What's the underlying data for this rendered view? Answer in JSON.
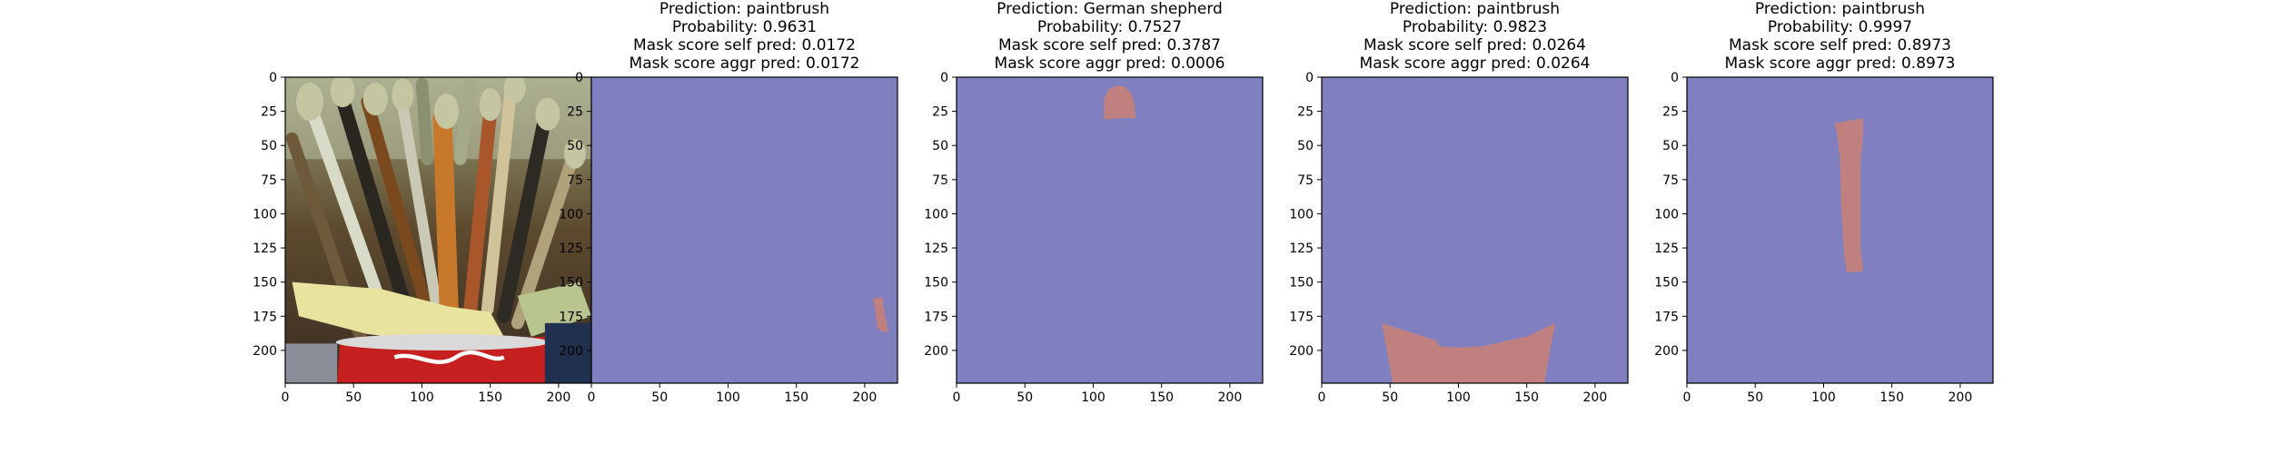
{
  "colors": {
    "mask_background": "#8080c0",
    "mask_region": "#c08080",
    "axes_frame": "#000000",
    "figure_background": "#ffffff"
  },
  "chart_data": [
    {
      "type": "image",
      "title_lines": [],
      "content": "photo",
      "image_extent": [
        0,
        224
      ],
      "xticks": [
        0,
        50,
        100,
        150,
        200
      ],
      "yticks": [
        0,
        25,
        50,
        75,
        100,
        125,
        150,
        175,
        200
      ],
      "grid": false
    },
    {
      "type": "heatmap",
      "title_lines": [
        "Prediction: paintbrush",
        "Probability: 0.9631",
        "Mask score self pred: 0.0172",
        "Mask score aggr pred: 0.0172"
      ],
      "image_extent": [
        0,
        224
      ],
      "xticks": [
        0,
        50,
        100,
        150,
        200
      ],
      "yticks": [
        0,
        25,
        50,
        75,
        100,
        125,
        150,
        175,
        200
      ],
      "grid": false,
      "mask_polygon": [
        [
          206,
          162
        ],
        [
          213,
          161
        ],
        [
          214,
          170
        ],
        [
          216,
          179
        ],
        [
          217,
          187
        ],
        [
          212,
          186
        ],
        [
          209,
          183
        ],
        [
          208,
          172
        ]
      ]
    },
    {
      "type": "heatmap",
      "title_lines": [
        "Prediction: German shepherd",
        "Probability: 0.7527",
        "Mask score self pred: 0.3787",
        "Mask score aggr pred: 0.0006"
      ],
      "image_extent": [
        0,
        224
      ],
      "xticks": [
        0,
        50,
        100,
        150,
        200
      ],
      "yticks": [
        0,
        25,
        50,
        75,
        100,
        125,
        150,
        175,
        200
      ],
      "grid": false,
      "mask_polygon": [
        [
          108,
          31
        ],
        [
          108,
          16
        ],
        [
          111,
          9
        ],
        [
          117,
          6
        ],
        [
          123,
          7
        ],
        [
          128,
          12
        ],
        [
          130,
          18
        ],
        [
          131,
          30
        ],
        [
          120,
          30
        ]
      ]
    },
    {
      "type": "heatmap",
      "title_lines": [
        "Prediction: paintbrush",
        "Probability: 0.9823",
        "Mask score self pred: 0.0264",
        "Mask score aggr pred: 0.0264"
      ],
      "image_extent": [
        0,
        224
      ],
      "xticks": [
        0,
        50,
        100,
        150,
        200
      ],
      "yticks": [
        0,
        25,
        50,
        75,
        100,
        125,
        150,
        175,
        200
      ],
      "grid": false,
      "mask_polygon": [
        [
          44,
          180
        ],
        [
          53,
          183
        ],
        [
          72,
          189
        ],
        [
          84,
          193
        ],
        [
          86,
          197
        ],
        [
          100,
          198
        ],
        [
          118,
          197
        ],
        [
          135,
          193
        ],
        [
          150,
          190
        ],
        [
          171,
          180
        ],
        [
          167,
          200
        ],
        [
          163,
          224
        ],
        [
          52,
          224
        ]
      ]
    },
    {
      "type": "heatmap",
      "title_lines": [
        "Prediction: paintbrush",
        "Probability: 0.9997",
        "Mask score self pred: 0.8973",
        "Mask score aggr pred: 0.8973"
      ],
      "image_extent": [
        0,
        224
      ],
      "xticks": [
        0,
        50,
        100,
        150,
        200
      ],
      "yticks": [
        0,
        25,
        50,
        75,
        100,
        125,
        150,
        175,
        200
      ],
      "grid": false,
      "mask_polygon": [
        [
          108,
          34
        ],
        [
          118,
          32
        ],
        [
          129,
          30
        ],
        [
          129,
          42
        ],
        [
          127,
          62
        ],
        [
          127,
          95
        ],
        [
          127,
          125
        ],
        [
          129,
          142
        ],
        [
          117,
          143
        ],
        [
          115,
          130
        ],
        [
          113,
          95
        ],
        [
          112,
          60
        ],
        [
          110,
          42
        ]
      ]
    }
  ]
}
